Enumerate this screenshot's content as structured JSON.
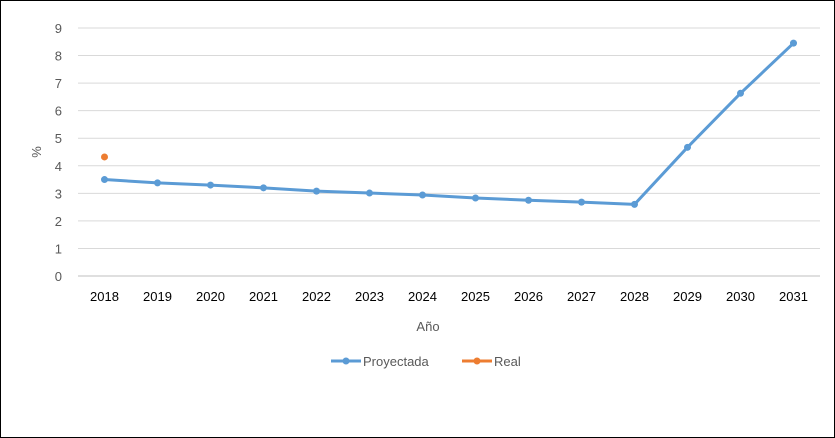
{
  "chart_data": {
    "type": "line",
    "title": "",
    "xlabel": "Año",
    "ylabel": "%",
    "categories": [
      "2018",
      "2019",
      "2020",
      "2021",
      "2022",
      "2023",
      "2024",
      "2025",
      "2026",
      "2027",
      "2028",
      "2029",
      "2030",
      "2031"
    ],
    "ylim": [
      0,
      9
    ],
    "yticks": [
      "0",
      "1",
      "2",
      "3",
      "4",
      "5",
      "6",
      "7",
      "8",
      "9"
    ],
    "grid": "horizontal",
    "legend_position": "bottom",
    "series": [
      {
        "name": "Proyectada",
        "color": "#5B9BD5",
        "values": [
          3.5,
          3.38,
          3.3,
          3.2,
          3.08,
          3.01,
          2.94,
          2.83,
          2.75,
          2.68,
          2.6,
          4.67,
          6.63,
          8.45
        ]
      },
      {
        "name": "Real",
        "color": "#ED7D31",
        "values": [
          4.32,
          null,
          null,
          null,
          null,
          null,
          null,
          null,
          null,
          null,
          null,
          null,
          null,
          null
        ]
      }
    ]
  }
}
